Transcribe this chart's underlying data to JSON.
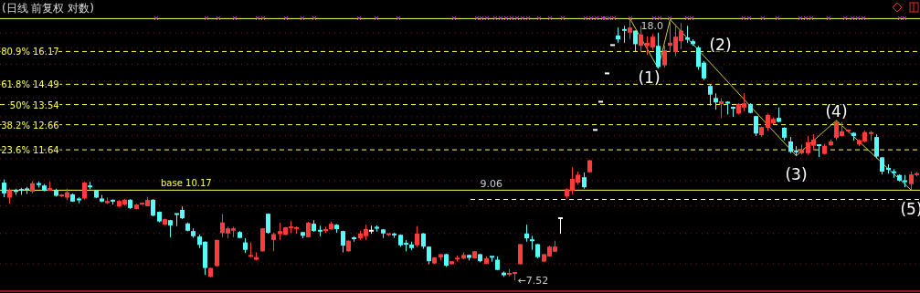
{
  "chart_data": {
    "type": "candlestick",
    "title": "(日线 前复权 对数)",
    "log": true,
    "ylim": [
      7.255,
      19.21
    ],
    "tick_labels": "y",
    "grid": "y",
    "yticks": [
      16.17,
      14.49,
      13.54,
      12.66,
      11.64,
      {
        "value": 17.2,
        "label": null
      },
      {
        "value": 16.35,
        "label": null
      },
      {
        "value": 15.5,
        "label": null
      },
      {
        "value": 14.65,
        "label": null
      },
      {
        "value": 13.85,
        "label": null
      },
      {
        "value": 13.0,
        "label": null
      },
      {
        "value": 12.2,
        "label": null
      },
      {
        "value": 11.3,
        "label": null
      },
      {
        "value": 10.5,
        "label": null
      },
      {
        "value": 9.65,
        "label": null
      },
      {
        "value": 8.8,
        "label": null
      },
      {
        "value": 7.95,
        "label": null
      }
    ],
    "ref_lines": [
      {
        "axis": "y",
        "value": 18.05,
        "label": null,
        "color": "#ffff54",
        "line_style": "solid"
      },
      {
        "axis": "y",
        "value": 10.17,
        "label": "base 10.17",
        "color": "#ffff54",
        "line_style": "solid"
      },
      {
        "axis": "y",
        "value": 9.86,
        "label": null,
        "color": "#ffffff",
        "line_style": "dashed"
      }
    ],
    "annotations": [
      "(1)",
      "(2)",
      "(3)",
      "(4)",
      "(5)",
      "18.0",
      "←7.52",
      "9.06",
      "80.9%",
      "61.8%",
      "50%",
      "38.2%",
      "23.6%"
    ],
    "categories": [
      null,
      null,
      null,
      null,
      null,
      null,
      null,
      null,
      null,
      null,
      null,
      null,
      null,
      null,
      null,
      null,
      null,
      null,
      null,
      null,
      null,
      null,
      null,
      null,
      null,
      null,
      null,
      null,
      null,
      null,
      null,
      null,
      null,
      null,
      null,
      null,
      null,
      null,
      null,
      null,
      null,
      null,
      null,
      null,
      null,
      null,
      null,
      null,
      null,
      null,
      null,
      null,
      null,
      null,
      null,
      null,
      null,
      null,
      null,
      null,
      null,
      null,
      null,
      null,
      null,
      null,
      null,
      null,
      null,
      null,
      null,
      null,
      null,
      null,
      null,
      null,
      null,
      null,
      null,
      null,
      null,
      null,
      null,
      null,
      null,
      null,
      null,
      null,
      null,
      null,
      null,
      null,
      null,
      null,
      null,
      null,
      null,
      null,
      null,
      null,
      null,
      null,
      null,
      null,
      null,
      null,
      null,
      null,
      null,
      null,
      null,
      null,
      null,
      null,
      null,
      null,
      null,
      null,
      null,
      null,
      null,
      null,
      null,
      null,
      null,
      null,
      null,
      null,
      null,
      null,
      null,
      null,
      null,
      null,
      null,
      null,
      null,
      null,
      null,
      null,
      null,
      null,
      null,
      null,
      null,
      null,
      null,
      null,
      null,
      null,
      null,
      null,
      null,
      null,
      null,
      null,
      null,
      null,
      null,
      null
    ],
    "ohlc": [
      [
        10.43,
        10.54,
        9.93,
        10.06
      ],
      [
        9.92,
        10.22,
        9.72,
        10.17
      ],
      [
        10.14,
        10.22,
        10.01,
        10.12
      ],
      [
        10.18,
        10.25,
        10.01,
        10.16
      ],
      [
        10.2,
        10.28,
        10.04,
        10.18
      ],
      [
        10.12,
        10.48,
        10.06,
        10.41
      ],
      [
        10.38,
        10.46,
        10.26,
        10.33
      ],
      [
        10.33,
        10.38,
        10.13,
        10.15
      ],
      [
        10.15,
        10.46,
        10.15,
        10.24
      ],
      [
        10.17,
        10.22,
        9.95,
        9.98
      ],
      [
        9.96,
        10.04,
        9.94,
        9.99
      ],
      [
        9.92,
        10.22,
        9.84,
        10.1
      ],
      [
        10.03,
        10.06,
        9.78,
        9.79
      ],
      [
        9.86,
        9.93,
        9.74,
        9.83
      ],
      [
        9.89,
        10.46,
        9.86,
        10.43
      ],
      [
        10.3,
        10.46,
        10.2,
        10.26
      ],
      [
        10.17,
        10.18,
        9.9,
        9.92
      ],
      [
        9.89,
        10.01,
        9.77,
        9.79
      ],
      [
        9.74,
        9.92,
        9.72,
        9.81
      ],
      [
        9.82,
        9.86,
        9.69,
        9.8
      ],
      [
        9.63,
        9.84,
        9.6,
        9.81
      ],
      [
        9.69,
        9.88,
        9.66,
        9.85
      ],
      [
        9.85,
        9.87,
        9.55,
        9.58
      ],
      [
        9.55,
        9.72,
        9.54,
        9.69
      ],
      [
        9.69,
        9.74,
        9.68,
        9.72
      ],
      [
        9.64,
        9.95,
        9.64,
        9.84
      ],
      [
        9.85,
        9.87,
        9.32,
        9.34
      ],
      [
        9.46,
        9.47,
        9.13,
        9.16
      ],
      [
        9.06,
        9.25,
        9.05,
        9.23
      ],
      [
        9.2,
        9.21,
        8.69,
        9.04
      ],
      [
        9.39,
        9.4,
        9.02,
        9.37
      ],
      [
        9.52,
        9.63,
        9.23,
        9.26
      ],
      [
        9.1,
        9.13,
        8.86,
        8.88
      ],
      [
        8.87,
        8.95,
        8.67,
        8.72
      ],
      [
        8.71,
        8.77,
        8.38,
        8.47
      ],
      [
        8.56,
        8.57,
        7.66,
        7.84
      ],
      [
        7.61,
        7.85,
        7.6,
        7.84
      ],
      [
        7.89,
        8.62,
        7.87,
        8.61
      ],
      [
        8.81,
        9.39,
        8.69,
        9.13
      ],
      [
        8.8,
        9.0,
        8.66,
        8.95
      ],
      [
        8.88,
        9.0,
        8.69,
        8.95
      ],
      [
        8.84,
        8.87,
        8.66,
        8.67
      ],
      [
        8.54,
        8.66,
        8.24,
        8.33
      ],
      [
        8.14,
        8.54,
        8.12,
        8.19
      ],
      [
        8.06,
        8.26,
        8.04,
        8.13
      ],
      [
        8.29,
        8.96,
        8.28,
        8.95
      ],
      [
        9.4,
        9.41,
        8.79,
        8.82
      ],
      [
        8.61,
        8.82,
        8.29,
        8.78
      ],
      [
        8.78,
        9.12,
        8.61,
        8.87
      ],
      [
        8.76,
        8.99,
        8.75,
        8.98
      ],
      [
        8.95,
        9.18,
        8.82,
        8.98
      ],
      [
        8.94,
        9.01,
        8.79,
        8.96
      ],
      [
        8.84,
        8.85,
        8.66,
        8.73
      ],
      [
        8.69,
        9.15,
        8.68,
        9.12
      ],
      [
        9.09,
        9.2,
        8.85,
        8.87
      ],
      [
        8.88,
        9.03,
        8.72,
        8.86
      ],
      [
        8.88,
        9.0,
        8.82,
        8.9
      ],
      [
        8.92,
        9.15,
        8.91,
        9.09
      ],
      [
        9.06,
        9.08,
        8.82,
        8.93
      ],
      [
        8.87,
        8.88,
        8.26,
        8.45
      ],
      [
        8.29,
        8.6,
        8.28,
        8.59
      ],
      [
        8.66,
        8.71,
        8.56,
        8.63
      ],
      [
        8.66,
        8.88,
        8.61,
        8.8
      ],
      [
        8.72,
        9.06,
        8.61,
        8.93
      ],
      [
        8.88,
        9.03,
        8.79,
        8.88
      ],
      [
        8.97,
        9.04,
        8.85,
        8.94
      ],
      [
        8.92,
        8.93,
        8.67,
        8.8
      ],
      [
        8.73,
        8.79,
        8.72,
        8.78
      ],
      [
        8.77,
        8.82,
        8.67,
        8.75
      ],
      [
        8.76,
        8.77,
        8.42,
        8.46
      ],
      [
        8.5,
        8.61,
        8.29,
        8.48
      ],
      [
        8.48,
        8.56,
        8.32,
        8.38
      ],
      [
        8.46,
        9.02,
        8.41,
        8.8
      ],
      [
        8.8,
        8.81,
        8.36,
        8.42
      ],
      [
        8.42,
        8.43,
        7.94,
        8.02
      ],
      [
        7.96,
        8.13,
        7.95,
        8.12
      ],
      [
        8.12,
        8.22,
        8.04,
        8.21
      ],
      [
        8.21,
        8.22,
        7.87,
        7.9
      ],
      [
        7.94,
        8.03,
        7.93,
        8.02
      ],
      [
        8.07,
        8.17,
        8.01,
        8.09
      ],
      [
        8.09,
        8.26,
        8.07,
        8.19
      ],
      [
        8.19,
        8.2,
        8.04,
        8.11
      ],
      [
        8.1,
        8.3,
        8.09,
        8.29
      ],
      [
        8.21,
        8.22,
        7.99,
        8.02
      ],
      [
        7.95,
        8.15,
        7.94,
        8.1
      ],
      [
        8.14,
        8.15,
        8.01,
        8.11
      ],
      [
        8.06,
        8.15,
        7.78,
        7.79
      ],
      [
        7.72,
        7.75,
        7.61,
        7.65
      ],
      [
        7.65,
        7.81,
        7.63,
        7.69
      ],
      [
        7.68,
        7.72,
        7.52,
        7.71
      ],
      [
        7.94,
        8.5,
        7.93,
        8.49
      ],
      [
        8.8,
        9.06,
        8.56,
        8.66
      ],
      [
        8.6,
        8.73,
        8.33,
        8.57
      ],
      [
        8.49,
        8.5,
        8.1,
        8.13
      ],
      [
        8.01,
        8.22,
        8.0,
        8.21
      ],
      [
        8.15,
        8.45,
        8.14,
        8.42
      ],
      [
        8.28,
        8.59,
        8.27,
        8.42
      ],
      [
        9.26,
        9.26,
        8.79,
        9.26
      ],
      [
        9.96,
        10.24,
        9.89,
        10.2
      ],
      [
        10.14,
        10.98,
        10.03,
        10.56
      ],
      [
        10.43,
        10.82,
        10.36,
        10.71
      ],
      [
        10.62,
        10.79,
        10.22,
        10.27
      ],
      [
        10.8,
        11.25,
        10.79,
        11.24
      ],
      [
        12.44,
        12.44,
        12.44,
        12.44
      ],
      [
        13.67,
        13.67,
        13.67,
        13.67
      ],
      [
        15.03,
        15.03,
        15.03,
        15.03
      ],
      [
        16.52,
        16.52,
        16.52,
        16.52
      ],
      [
        17.06,
        17.52,
        16.65,
        16.84
      ],
      [
        17.38,
        17.62,
        16.65,
        17.3
      ],
      [
        17.22,
        18.05,
        16.84,
        17.52
      ],
      [
        17.34,
        17.35,
        16.17,
        16.57
      ],
      [
        16.48,
        17.62,
        16.15,
        17.12
      ],
      [
        16.48,
        17.0,
        15.99,
        16.65
      ],
      [
        16.39,
        17.12,
        16.25,
        16.99
      ],
      [
        16.48,
        17.22,
        15.28,
        15.36
      ],
      [
        15.44,
        16.48,
        15.33,
        16.24
      ],
      [
        16.48,
        18.0,
        16.15,
        16.65
      ],
      [
        16.14,
        17.72,
        15.92,
        16.99
      ],
      [
        16.74,
        17.79,
        16.31,
        17.34
      ],
      [
        16.95,
        17.62,
        16.65,
        16.82
      ],
      [
        16.74,
        16.84,
        16.48,
        16.57
      ],
      [
        16.39,
        16.48,
        15.21,
        15.36
      ],
      [
        15.58,
        15.66,
        14.7,
        14.78
      ],
      [
        14.41,
        14.47,
        13.5,
        14.0
      ],
      [
        13.84,
        14.06,
        13.31,
        13.64
      ],
      [
        13.56,
        13.84,
        12.94,
        13.69
      ],
      [
        13.63,
        13.7,
        13.1,
        13.58
      ],
      [
        13.4,
        13.45,
        12.99,
        13.36
      ],
      [
        13.14,
        13.6,
        13.1,
        13.57
      ],
      [
        13.41,
        14.06,
        13.24,
        13.6
      ],
      [
        13.57,
        13.6,
        13.15,
        13.17
      ],
      [
        13.03,
        13.04,
        12.19,
        12.29
      ],
      [
        12.23,
        12.58,
        12.15,
        12.56
      ],
      [
        12.53,
        13.14,
        12.4,
        13.08
      ],
      [
        12.72,
        12.97,
        12.67,
        12.91
      ],
      [
        12.95,
        13.41,
        12.76,
        12.78
      ],
      [
        12.53,
        12.55,
        12.02,
        12.12
      ],
      [
        11.97,
        12.15,
        11.51,
        11.56
      ],
      [
        11.58,
        11.78,
        11.41,
        11.55
      ],
      [
        11.51,
        11.85,
        11.46,
        11.64
      ],
      [
        11.51,
        12.19,
        11.44,
        11.94
      ],
      [
        11.8,
        12.26,
        11.62,
        12.04
      ],
      [
        11.82,
        11.83,
        11.36,
        11.78
      ],
      [
        11.48,
        11.88,
        11.47,
        11.8
      ],
      [
        11.82,
        12.04,
        11.8,
        11.97
      ],
      [
        12.12,
        12.84,
        12.02,
        12.77
      ],
      [
        12.19,
        12.77,
        12.16,
        12.39
      ],
      [
        12.35,
        12.45,
        12.33,
        12.42
      ],
      [
        12.32,
        12.35,
        12.0,
        12.19
      ],
      [
        11.85,
        12.05,
        11.78,
        12.02
      ],
      [
        11.97,
        12.42,
        11.94,
        12.35
      ],
      [
        12.28,
        12.4,
        12.0,
        12.31
      ],
      [
        12.15,
        12.26,
        11.32,
        11.38
      ],
      [
        11.35,
        11.36,
        10.72,
        10.82
      ],
      [
        10.92,
        11.09,
        10.75,
        10.89
      ],
      [
        10.8,
        10.91,
        10.6,
        10.77
      ],
      [
        10.7,
        10.72,
        10.47,
        10.5
      ],
      [
        10.48,
        10.7,
        10.27,
        10.45
      ],
      [
        10.38,
        10.82,
        10.17,
        10.72
      ],
      [
        10.7,
        10.8,
        10.65,
        10.73
      ]
    ]
  }
}
